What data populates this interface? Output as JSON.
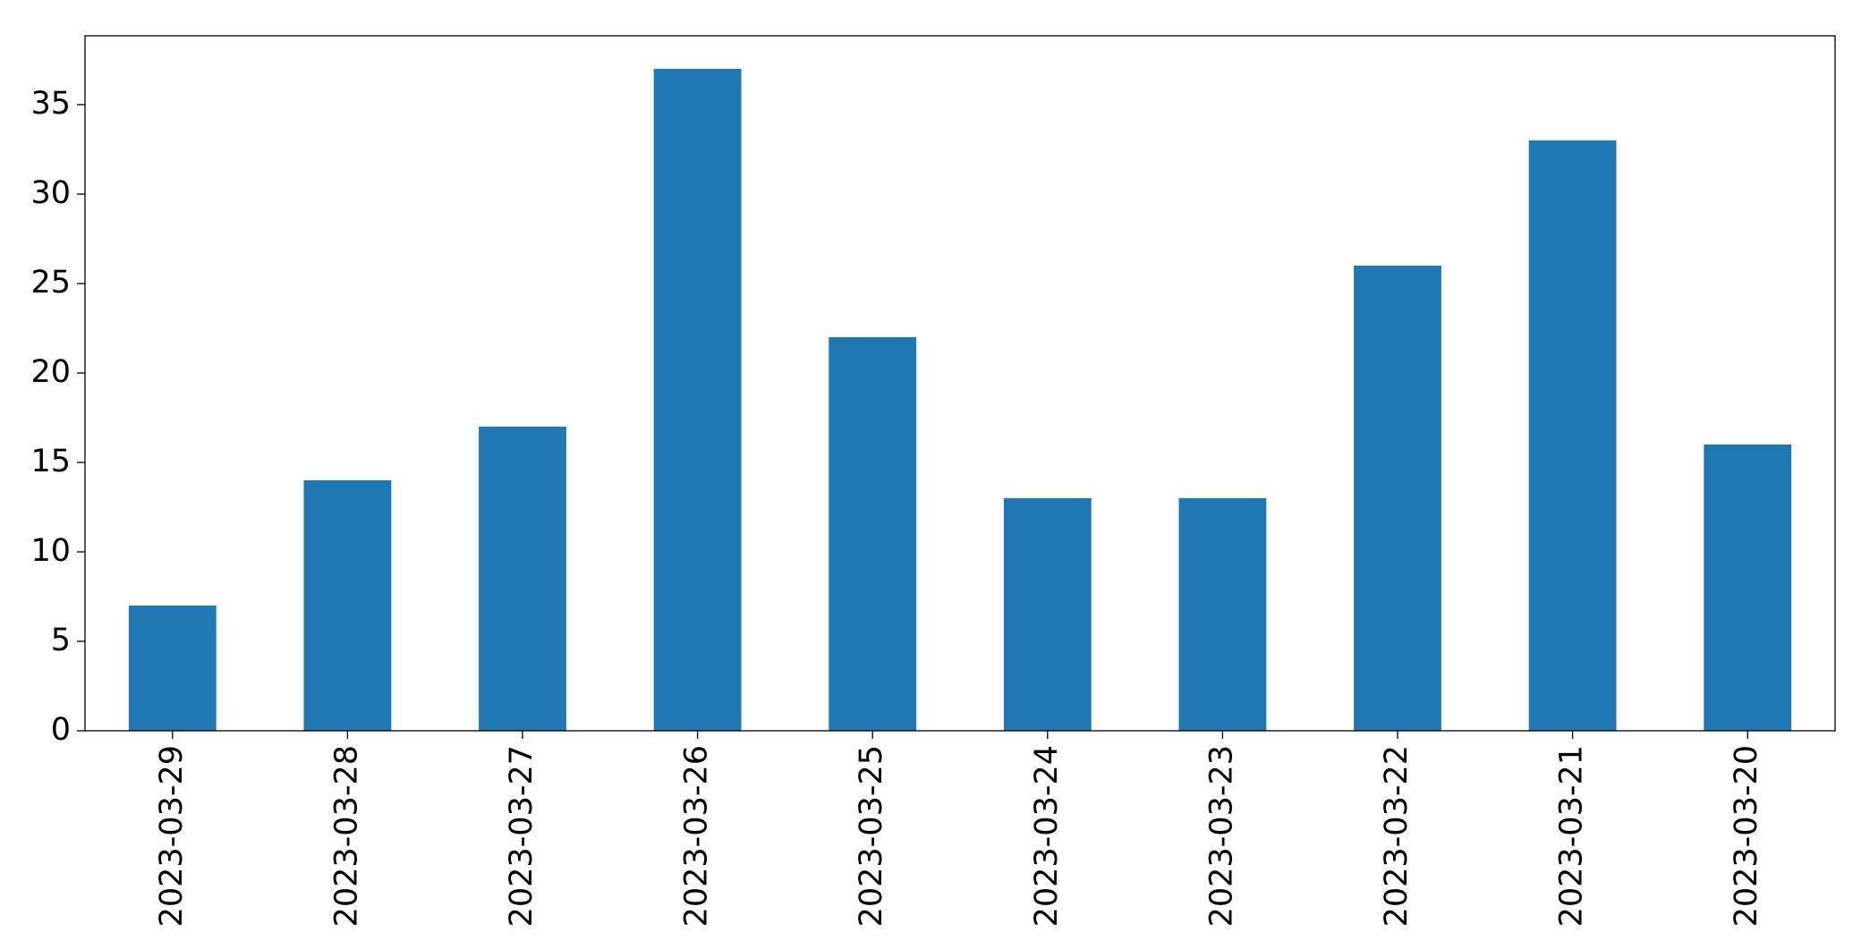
{
  "chart_data": {
    "type": "bar",
    "categories": [
      "2023-03-29",
      "2023-03-28",
      "2023-03-27",
      "2023-03-26",
      "2023-03-25",
      "2023-03-24",
      "2023-03-23",
      "2023-03-22",
      "2023-03-21",
      "2023-03-20"
    ],
    "values": [
      7,
      14,
      17,
      37,
      22,
      13,
      13,
      26,
      33,
      16
    ],
    "color": "#1f77b4",
    "ylim": [
      0,
      38.85
    ],
    "yticks": [
      0,
      5,
      10,
      15,
      20,
      25,
      30,
      35
    ],
    "grid": false
  }
}
